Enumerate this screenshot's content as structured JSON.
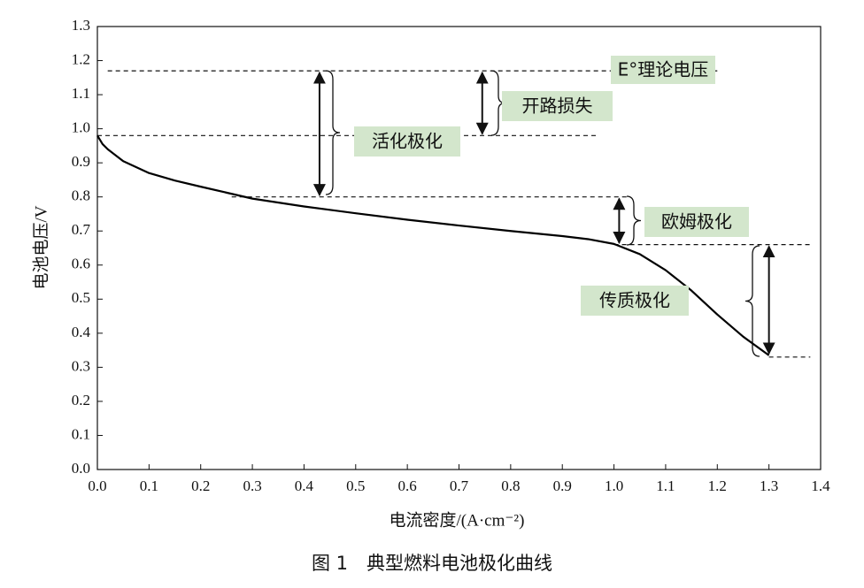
{
  "chart_data": {
    "type": "line",
    "x_label": "电流密度/(A·cm⁻²)",
    "y_label": "电池电压/V",
    "caption": "图 1　典型燃料电池极化曲线",
    "x": [
      0,
      0.01,
      0.02,
      0.05,
      0.1,
      0.15,
      0.2,
      0.3,
      0.4,
      0.5,
      0.6,
      0.7,
      0.8,
      0.9,
      0.95,
      1.0,
      1.05,
      1.1,
      1.15,
      1.2,
      1.25,
      1.3
    ],
    "series": [
      {
        "name": "极化曲线",
        "color": "#000000",
        "values": [
          0.98,
          0.955,
          0.94,
          0.905,
          0.87,
          0.848,
          0.83,
          0.795,
          0.772,
          0.752,
          0.733,
          0.716,
          0.7,
          0.685,
          0.676,
          0.662,
          0.632,
          0.585,
          0.525,
          0.455,
          0.39,
          0.335
        ]
      }
    ],
    "xlim": [
      0,
      1.4
    ],
    "ylim": [
      0,
      1.3
    ],
    "xticks": [
      {
        "value": 0,
        "label": "0.0"
      },
      0.1,
      0.2,
      0.3,
      0.4,
      0.5,
      0.6,
      0.7,
      0.8,
      0.9,
      {
        "value": 1,
        "label": "1.0"
      },
      1.1,
      1.2,
      1.3,
      1.4
    ],
    "yticks": [
      {
        "value": 0,
        "label": "0.0"
      },
      0.1,
      0.2,
      0.3,
      0.4,
      0.5,
      0.6,
      0.7,
      0.8,
      0.9,
      {
        "value": 1,
        "label": "1.0"
      },
      1.1,
      1.2,
      1.3
    ],
    "reference_lines": [
      {
        "y": 1.17,
        "x": [
          0.02,
          1.2
        ]
      },
      {
        "y": 0.98,
        "x": [
          0.0,
          0.97
        ]
      },
      {
        "y": 0.8,
        "x": [
          0.26,
          1.03
        ]
      },
      {
        "y": 0.66,
        "x": [
          1.0,
          1.38
        ]
      },
      {
        "y": 0.33,
        "x": [
          1.3,
          1.38
        ]
      }
    ],
    "arrows": [
      {
        "x": 0.43,
        "from": 1.17,
        "to": 0.8
      },
      {
        "x": 0.745,
        "from": 1.17,
        "to": 0.98
      },
      {
        "x": 1.01,
        "from": 0.8,
        "to": 0.66
      },
      {
        "x": 1.3,
        "from": 0.66,
        "to": 0.335
      }
    ],
    "annotations": [
      "E°理论电压",
      "开路损失",
      "活化极化",
      "欧姆极化",
      "传质极化"
    ]
  }
}
